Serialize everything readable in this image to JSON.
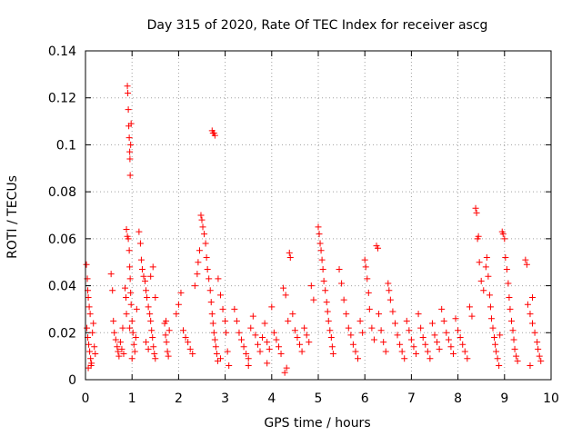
{
  "chart_data": {
    "type": "scatter",
    "title": "Day 315 of 2020, Rate Of TEC Index for receiver ascg",
    "xlabel": "GPS time / hours",
    "ylabel": "ROTI / TECUs",
    "xlim": [
      0,
      10
    ],
    "ylim": [
      0,
      0.14
    ],
    "xticks": [
      "0",
      "1",
      "2",
      "3",
      "4",
      "5",
      "6",
      "7",
      "8",
      "9",
      "10"
    ],
    "yticks": [
      "0",
      "0.02",
      "0.04",
      "0.06",
      "0.08",
      "0.1",
      "0.12",
      "0.14"
    ],
    "grid": true,
    "marker": "+",
    "color": "#ff0000",
    "series": [
      {
        "name": "ROTI",
        "points": [
          [
            0.02,
            0.049
          ],
          [
            0.04,
            0.043
          ],
          [
            0.05,
            0.038
          ],
          [
            0.06,
            0.035
          ],
          [
            0.08,
            0.031
          ],
          [
            0.1,
            0.028
          ],
          [
            0.03,
            0.022
          ],
          [
            0.05,
            0.018
          ],
          [
            0.07,
            0.015
          ],
          [
            0.09,
            0.012
          ],
          [
            0.11,
            0.009
          ],
          [
            0.13,
            0.007
          ],
          [
            0.15,
            0.02
          ],
          [
            0.17,
            0.024
          ],
          [
            0.19,
            0.014
          ],
          [
            0.21,
            0.011
          ],
          [
            0.06,
            0.005
          ],
          [
            0.12,
            0.006
          ],
          [
            0.55,
            0.045
          ],
          [
            0.58,
            0.038
          ],
          [
            0.6,
            0.025
          ],
          [
            0.62,
            0.02
          ],
          [
            0.65,
            0.017
          ],
          [
            0.68,
            0.014
          ],
          [
            0.7,
            0.012
          ],
          [
            0.72,
            0.01
          ],
          [
            0.75,
            0.016
          ],
          [
            0.78,
            0.013
          ],
          [
            0.8,
            0.022
          ],
          [
            0.82,
            0.011
          ],
          [
            0.85,
            0.039
          ],
          [
            0.87,
            0.035
          ],
          [
            0.88,
            0.028
          ],
          [
            0.9,
            0.125
          ],
          [
            0.91,
            0.122
          ],
          [
            0.92,
            0.115
          ],
          [
            0.93,
            0.108
          ],
          [
            0.94,
            0.103
          ],
          [
            0.95,
            0.097
          ],
          [
            0.955,
            0.094
          ],
          [
            0.96,
            0.087
          ],
          [
            0.97,
            0.1
          ],
          [
            0.98,
            0.109
          ],
          [
            0.88,
            0.064
          ],
          [
            0.9,
            0.061
          ],
          [
            0.92,
            0.06
          ],
          [
            0.94,
            0.055
          ],
          [
            0.95,
            0.048
          ],
          [
            0.96,
            0.043
          ],
          [
            0.97,
            0.037
          ],
          [
            0.98,
            0.032
          ],
          [
            1.0,
            0.025
          ],
          [
            1.02,
            0.02
          ],
          [
            1.04,
            0.015
          ],
          [
            1.06,
            0.012
          ],
          [
            1.08,
            0.018
          ],
          [
            1.0,
            0.009
          ],
          [
            0.95,
            0.022
          ],
          [
            1.1,
            0.03
          ],
          [
            1.15,
            0.063
          ],
          [
            1.18,
            0.058
          ],
          [
            1.2,
            0.051
          ],
          [
            1.22,
            0.047
          ],
          [
            1.25,
            0.044
          ],
          [
            1.28,
            0.042
          ],
          [
            1.3,
            0.038
          ],
          [
            1.32,
            0.035
          ],
          [
            1.35,
            0.031
          ],
          [
            1.38,
            0.028
          ],
          [
            1.4,
            0.025
          ],
          [
            1.42,
            0.021
          ],
          [
            1.44,
            0.018
          ],
          [
            1.46,
            0.014
          ],
          [
            1.48,
            0.011
          ],
          [
            1.5,
            0.009
          ],
          [
            1.3,
            0.016
          ],
          [
            1.35,
            0.013
          ],
          [
            1.45,
            0.048
          ],
          [
            1.4,
            0.044
          ],
          [
            1.5,
            0.035
          ],
          [
            1.7,
            0.024
          ],
          [
            1.72,
            0.019
          ],
          [
            1.74,
            0.016
          ],
          [
            1.76,
            0.012
          ],
          [
            1.78,
            0.01
          ],
          [
            1.8,
            0.021
          ],
          [
            1.73,
            0.025
          ],
          [
            1.95,
            0.028
          ],
          [
            2.0,
            0.032
          ],
          [
            2.05,
            0.037
          ],
          [
            2.1,
            0.021
          ],
          [
            2.15,
            0.018
          ],
          [
            2.2,
            0.016
          ],
          [
            2.25,
            0.013
          ],
          [
            2.3,
            0.011
          ],
          [
            2.35,
            0.04
          ],
          [
            2.4,
            0.045
          ],
          [
            2.42,
            0.05
          ],
          [
            2.45,
            0.055
          ],
          [
            2.48,
            0.07
          ],
          [
            2.5,
            0.068
          ],
          [
            2.52,
            0.065
          ],
          [
            2.55,
            0.062
          ],
          [
            2.58,
            0.058
          ],
          [
            2.6,
            0.052
          ],
          [
            2.62,
            0.047
          ],
          [
            2.65,
            0.043
          ],
          [
            2.68,
            0.038
          ],
          [
            2.7,
            0.033
          ],
          [
            2.72,
            0.028
          ],
          [
            2.74,
            0.024
          ],
          [
            2.76,
            0.02
          ],
          [
            2.78,
            0.017
          ],
          [
            2.8,
            0.014
          ],
          [
            2.82,
            0.011
          ],
          [
            2.84,
            0.008
          ],
          [
            2.72,
            0.106
          ],
          [
            2.74,
            0.105
          ],
          [
            2.76,
            0.105
          ],
          [
            2.78,
            0.104
          ],
          [
            2.85,
            0.043
          ],
          [
            2.9,
            0.036
          ],
          [
            2.95,
            0.03
          ],
          [
            3.0,
            0.025
          ],
          [
            3.02,
            0.02
          ],
          [
            3.05,
            0.012
          ],
          [
            3.08,
            0.006
          ],
          [
            2.9,
            0.009
          ],
          [
            3.2,
            0.03
          ],
          [
            3.25,
            0.025
          ],
          [
            3.3,
            0.02
          ],
          [
            3.35,
            0.017
          ],
          [
            3.4,
            0.014
          ],
          [
            3.45,
            0.011
          ],
          [
            3.5,
            0.009
          ],
          [
            3.55,
            0.022
          ],
          [
            3.6,
            0.027
          ],
          [
            3.65,
            0.019
          ],
          [
            3.7,
            0.015
          ],
          [
            3.75,
            0.012
          ],
          [
            3.8,
            0.018
          ],
          [
            3.85,
            0.024
          ],
          [
            3.9,
            0.016
          ],
          [
            3.95,
            0.013
          ],
          [
            4.0,
            0.031
          ],
          [
            4.05,
            0.02
          ],
          [
            4.1,
            0.017
          ],
          [
            4.15,
            0.014
          ],
          [
            4.2,
            0.011
          ],
          [
            4.25,
            0.039
          ],
          [
            4.3,
            0.036
          ],
          [
            4.35,
            0.025
          ],
          [
            4.38,
            0.054
          ],
          [
            4.4,
            0.052
          ],
          [
            4.45,
            0.028
          ],
          [
            4.5,
            0.021
          ],
          [
            4.55,
            0.018
          ],
          [
            4.6,
            0.015
          ],
          [
            4.65,
            0.012
          ],
          [
            4.7,
            0.022
          ],
          [
            4.75,
            0.019
          ],
          [
            4.8,
            0.016
          ],
          [
            4.85,
            0.04
          ],
          [
            4.9,
            0.034
          ],
          [
            4.32,
            0.005
          ],
          [
            4.28,
            0.003
          ],
          [
            3.5,
            0.006
          ],
          [
            3.9,
            0.007
          ],
          [
            5.0,
            0.065
          ],
          [
            5.02,
            0.062
          ],
          [
            5.04,
            0.058
          ],
          [
            5.06,
            0.055
          ],
          [
            5.08,
            0.051
          ],
          [
            5.1,
            0.047
          ],
          [
            5.12,
            0.042
          ],
          [
            5.15,
            0.038
          ],
          [
            5.18,
            0.033
          ],
          [
            5.2,
            0.029
          ],
          [
            5.22,
            0.025
          ],
          [
            5.25,
            0.021
          ],
          [
            5.28,
            0.018
          ],
          [
            5.3,
            0.014
          ],
          [
            5.32,
            0.011
          ],
          [
            5.45,
            0.047
          ],
          [
            5.5,
            0.041
          ],
          [
            5.55,
            0.034
          ],
          [
            5.6,
            0.028
          ],
          [
            5.65,
            0.022
          ],
          [
            5.7,
            0.019
          ],
          [
            5.75,
            0.015
          ],
          [
            5.8,
            0.012
          ],
          [
            5.85,
            0.009
          ],
          [
            5.9,
            0.025
          ],
          [
            5.95,
            0.02
          ],
          [
            6.0,
            0.051
          ],
          [
            6.02,
            0.048
          ],
          [
            6.05,
            0.043
          ],
          [
            6.08,
            0.037
          ],
          [
            6.1,
            0.03
          ],
          [
            6.15,
            0.022
          ],
          [
            6.2,
            0.017
          ],
          [
            6.25,
            0.057
          ],
          [
            6.28,
            0.056
          ],
          [
            6.3,
            0.028
          ],
          [
            6.35,
            0.021
          ],
          [
            6.4,
            0.016
          ],
          [
            6.45,
            0.012
          ],
          [
            6.5,
            0.041
          ],
          [
            6.52,
            0.038
          ],
          [
            6.55,
            0.034
          ],
          [
            6.6,
            0.029
          ],
          [
            6.65,
            0.024
          ],
          [
            6.7,
            0.019
          ],
          [
            6.75,
            0.015
          ],
          [
            6.8,
            0.012
          ],
          [
            6.85,
            0.009
          ],
          [
            6.9,
            0.025
          ],
          [
            6.95,
            0.021
          ],
          [
            7.0,
            0.017
          ],
          [
            7.05,
            0.014
          ],
          [
            7.1,
            0.011
          ],
          [
            7.15,
            0.028
          ],
          [
            7.2,
            0.022
          ],
          [
            7.25,
            0.018
          ],
          [
            7.3,
            0.015
          ],
          [
            7.35,
            0.012
          ],
          [
            7.4,
            0.009
          ],
          [
            7.45,
            0.024
          ],
          [
            7.5,
            0.019
          ],
          [
            7.55,
            0.016
          ],
          [
            7.6,
            0.013
          ],
          [
            7.65,
            0.03
          ],
          [
            7.7,
            0.025
          ],
          [
            7.75,
            0.02
          ],
          [
            7.8,
            0.017
          ],
          [
            7.85,
            0.014
          ],
          [
            7.9,
            0.011
          ],
          [
            7.95,
            0.026
          ],
          [
            8.0,
            0.021
          ],
          [
            8.05,
            0.018
          ],
          [
            8.1,
            0.015
          ],
          [
            8.15,
            0.012
          ],
          [
            8.2,
            0.009
          ],
          [
            8.25,
            0.031
          ],
          [
            8.3,
            0.027
          ],
          [
            8.38,
            0.073
          ],
          [
            8.4,
            0.071
          ],
          [
            8.42,
            0.06
          ],
          [
            8.44,
            0.061
          ],
          [
            8.46,
            0.05
          ],
          [
            8.5,
            0.042
          ],
          [
            8.55,
            0.038
          ],
          [
            8.6,
            0.048
          ],
          [
            8.62,
            0.052
          ],
          [
            8.65,
            0.044
          ],
          [
            8.68,
            0.036
          ],
          [
            8.7,
            0.031
          ],
          [
            8.72,
            0.026
          ],
          [
            8.75,
            0.022
          ],
          [
            8.78,
            0.018
          ],
          [
            8.8,
            0.015
          ],
          [
            8.82,
            0.012
          ],
          [
            8.85,
            0.009
          ],
          [
            8.88,
            0.006
          ],
          [
            8.9,
            0.019
          ],
          [
            8.95,
            0.063
          ],
          [
            8.97,
            0.062
          ],
          [
            9.0,
            0.06
          ],
          [
            9.02,
            0.052
          ],
          [
            9.05,
            0.047
          ],
          [
            9.08,
            0.041
          ],
          [
            9.1,
            0.035
          ],
          [
            9.12,
            0.03
          ],
          [
            9.15,
            0.025
          ],
          [
            9.18,
            0.021
          ],
          [
            9.2,
            0.017
          ],
          [
            9.22,
            0.013
          ],
          [
            9.25,
            0.01
          ],
          [
            9.28,
            0.008
          ],
          [
            9.45,
            0.051
          ],
          [
            9.48,
            0.049
          ],
          [
            9.5,
            0.032
          ],
          [
            9.55,
            0.028
          ],
          [
            9.6,
            0.024
          ],
          [
            9.65,
            0.02
          ],
          [
            9.7,
            0.016
          ],
          [
            9.72,
            0.013
          ],
          [
            9.75,
            0.01
          ],
          [
            9.78,
            0.008
          ],
          [
            9.6,
            0.035
          ],
          [
            9.55,
            0.006
          ]
        ]
      }
    ]
  }
}
